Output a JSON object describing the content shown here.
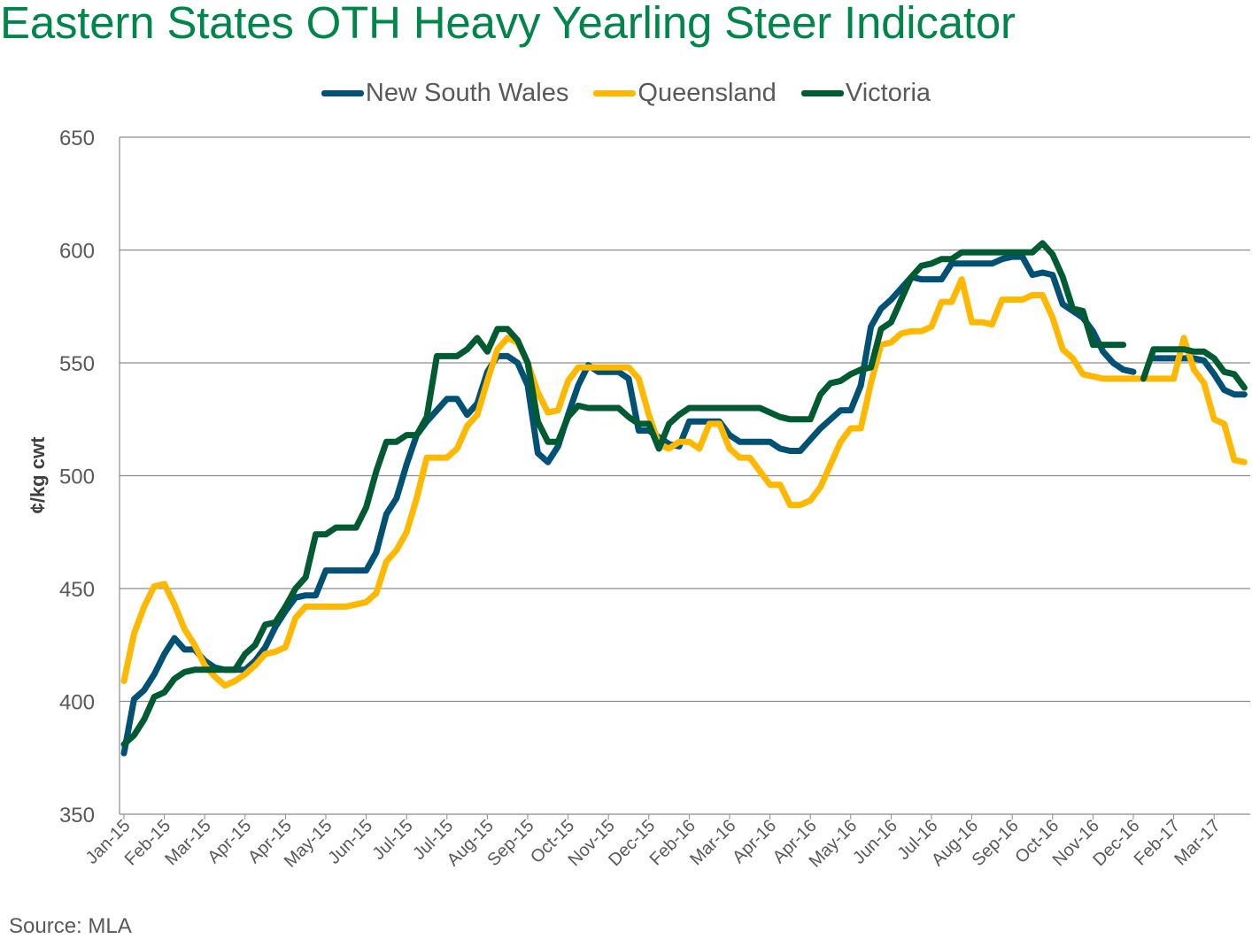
{
  "chart_data": {
    "type": "line",
    "title": "Eastern States OTH Heavy Yearling Steer Indicator",
    "xlabel": "",
    "ylabel": "¢/kg cwt",
    "ylim": [
      350,
      650
    ],
    "y_ticks": [
      "350",
      "400",
      "450",
      "500",
      "550",
      "600",
      "650"
    ],
    "grid": "horizontal",
    "legend": "top",
    "x_ticks": [
      {
        "label": "Jan-15",
        "index": 0
      },
      {
        "label": "Feb-15",
        "index": 4
      },
      {
        "label": "Mar-15",
        "index": 8
      },
      {
        "label": "Apr-15",
        "index": 12
      },
      {
        "label": "Apr-15",
        "index": 16
      },
      {
        "label": "May-15",
        "index": 20
      },
      {
        "label": "Jun-15",
        "index": 24
      },
      {
        "label": "Jul-15",
        "index": 28
      },
      {
        "label": "Jul-15",
        "index": 32
      },
      {
        "label": "Aug-15",
        "index": 36
      },
      {
        "label": "Sep-15",
        "index": 40
      },
      {
        "label": "Oct-15",
        "index": 44
      },
      {
        "label": "Nov-15",
        "index": 48
      },
      {
        "label": "Dec-15",
        "index": 52
      },
      {
        "label": "Feb-16",
        "index": 56
      },
      {
        "label": "Mar-16",
        "index": 60
      },
      {
        "label": "Apr-16",
        "index": 64
      },
      {
        "label": "Apr-16",
        "index": 68
      },
      {
        "label": "May-16",
        "index": 72
      },
      {
        "label": "Jun-16",
        "index": 76
      },
      {
        "label": "Jul-16",
        "index": 80
      },
      {
        "label": "Aug-16",
        "index": 84
      },
      {
        "label": "Sep-16",
        "index": 88
      },
      {
        "label": "Oct-16",
        "index": 92
      },
      {
        "label": "Nov-16",
        "index": 96
      },
      {
        "label": "Dec-16",
        "index": 100
      },
      {
        "label": "Feb-17",
        "index": 104
      },
      {
        "label": "Mar-17",
        "index": 108
      }
    ],
    "series": [
      {
        "name": "New South Wales",
        "color": "#005174",
        "values": [
          377,
          401,
          405,
          412,
          421,
          428,
          423,
          423,
          418,
          415,
          414,
          414,
          414,
          418,
          424,
          433,
          440,
          446,
          447,
          447,
          458,
          458,
          458,
          458,
          458,
          466,
          483,
          490,
          505,
          518,
          524,
          529,
          534,
          534,
          527,
          532,
          546,
          553,
          553,
          550,
          540,
          510,
          506,
          513,
          527,
          540,
          549,
          546,
          546,
          546,
          543,
          520,
          520,
          517,
          514,
          513,
          524,
          524,
          524,
          524,
          518,
          515,
          515,
          515,
          515,
          512,
          511,
          511,
          516,
          521,
          525,
          529,
          529,
          540,
          566,
          574,
          578,
          583,
          588,
          587,
          587,
          587,
          594,
          594,
          594,
          594,
          594,
          596,
          597,
          597,
          589,
          590,
          589,
          576,
          573,
          570,
          564,
          555,
          550,
          547,
          546,
          null,
          552,
          552,
          552,
          552,
          552,
          551,
          545,
          538,
          536,
          536
        ]
      },
      {
        "name": "Queensland",
        "color": "#FFB800",
        "values": [
          409,
          430,
          442,
          451,
          452,
          443,
          432,
          425,
          416,
          411,
          407,
          409,
          412,
          416,
          421,
          422,
          424,
          437,
          442,
          442,
          442,
          442,
          442,
          443,
          444,
          448,
          462,
          467,
          475,
          490,
          508,
          508,
          508,
          512,
          522,
          527,
          542,
          556,
          561,
          559,
          550,
          537,
          528,
          529,
          542,
          548,
          548,
          548,
          548,
          548,
          548,
          543,
          527,
          514,
          512,
          515,
          515,
          512,
          523,
          523,
          512,
          508,
          508,
          502,
          496,
          496,
          487,
          487,
          489,
          495,
          505,
          515,
          521,
          521,
          541,
          558,
          559,
          563,
          564,
          564,
          566,
          577,
          577,
          587,
          568,
          568,
          567,
          578,
          578,
          578,
          580,
          580,
          570,
          556,
          552,
          545,
          544,
          543,
          543,
          543,
          543,
          543,
          543,
          543,
          543,
          561,
          547,
          541,
          525,
          523,
          507,
          506
        ]
      },
      {
        "name": "Victoria",
        "color": "#005A32",
        "values": [
          381,
          385,
          392,
          402,
          404,
          410,
          413,
          414,
          414,
          414,
          414,
          414,
          421,
          425,
          434,
          435,
          442,
          450,
          455,
          474,
          474,
          477,
          477,
          477,
          486,
          502,
          515,
          515,
          518,
          518,
          526,
          553,
          553,
          553,
          556,
          561,
          555,
          565,
          565,
          560,
          550,
          524,
          515,
          515,
          526,
          531,
          530,
          530,
          530,
          530,
          526,
          523,
          523,
          512,
          523,
          527,
          530,
          530,
          530,
          530,
          530,
          530,
          530,
          530,
          528,
          526,
          525,
          525,
          525,
          536,
          541,
          542,
          545,
          547,
          548,
          565,
          568,
          578,
          588,
          593,
          594,
          596,
          596,
          599,
          599,
          599,
          599,
          599,
          599,
          599,
          599,
          603,
          598,
          588,
          574,
          573,
          558,
          558,
          558,
          558,
          null,
          543,
          556,
          556,
          556,
          556,
          555,
          555,
          552,
          546,
          545,
          539
        ]
      }
    ]
  },
  "source": "Source: MLA"
}
